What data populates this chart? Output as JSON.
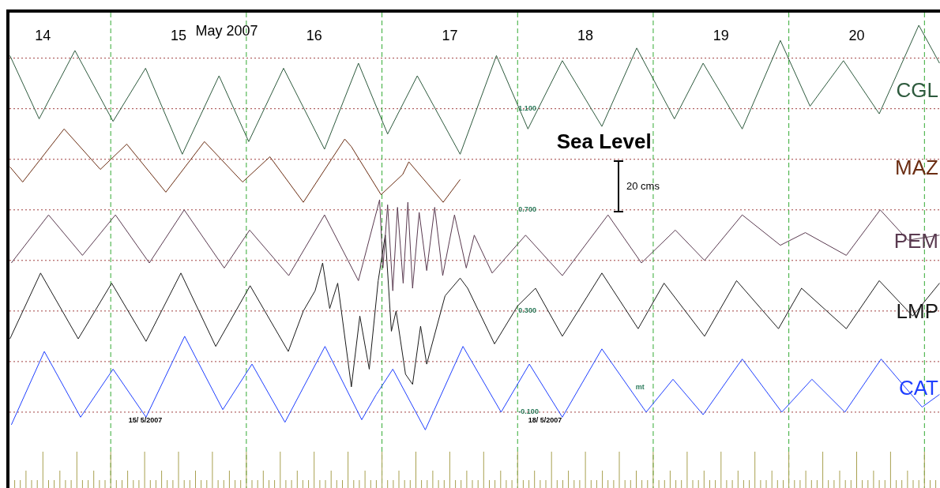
{
  "chart_data": {
    "type": "line",
    "title": "Sea Level",
    "ylabel": "mt",
    "xlim": [
      "2007-05-14T06:05",
      "2007-05-21T02:45"
    ],
    "xticks": [
      {
        "value": "2007-05-14T12:00",
        "label": "14"
      },
      {
        "value": "2007-05-15T12:00",
        "label": "15"
      },
      {
        "value": "2007-05-16T12:00",
        "label": "16"
      },
      {
        "value": "2007-05-17T12:00",
        "label": "17"
      },
      {
        "value": "2007-05-18T12:00",
        "label": "18"
      },
      {
        "value": "2007-05-19T12:00",
        "label": "19"
      },
      {
        "value": "2007-05-20T12:00",
        "label": "20"
      }
    ],
    "ylim": [
      -0.4,
      1.48
    ],
    "yticks": [
      {
        "value": -0.1,
        "label": "-0.100"
      },
      {
        "value": 0.1,
        "label": null
      },
      {
        "value": 0.3,
        "label": "0.300"
      },
      {
        "value": 0.5,
        "label": null
      },
      {
        "value": 0.7,
        "label": "0.700"
      },
      {
        "value": 0.9,
        "label": null
      },
      {
        "value": 1.1,
        "label": "1.100"
      },
      {
        "value": 1.3,
        "label": null
      }
    ],
    "grid": "y",
    "legend": false,
    "marker": "none",
    "line_style": "solid",
    "ref_lines": [
      {
        "axis": "x",
        "value": "2007-05-15T00:00",
        "color": "#33aa33",
        "line_style": "dashed"
      },
      {
        "axis": "x",
        "value": "2007-05-16T00:00",
        "color": "#33aa33",
        "line_style": "dashed"
      },
      {
        "axis": "x",
        "value": "2007-05-17T00:00",
        "color": "#33aa33",
        "line_style": "dashed"
      },
      {
        "axis": "x",
        "value": "2007-05-18T00:00",
        "color": "#33aa33",
        "line_style": "dashed"
      },
      {
        "axis": "x",
        "value": "2007-05-19T00:00",
        "color": "#33aa33",
        "line_style": "dashed"
      },
      {
        "axis": "x",
        "value": "2007-05-20T00:00",
        "color": "#33aa33",
        "line_style": "dashed"
      },
      {
        "axis": "x",
        "value": "2007-05-21T00:00",
        "color": "#33aa33",
        "line_style": "dashed"
      }
    ],
    "annotations": [
      "May 2007",
      "15/ 5/2007",
      "18/ 5/2007",
      "20 cms"
    ],
    "series": [
      {
        "name": "CGL",
        "color": "#2d5a3d",
        "x": [
          "2007-05-14T06:10",
          "2007-05-14T11:20",
          "2007-05-14T17:40",
          "2007-05-15T00:25",
          "2007-05-15T06:10",
          "2007-05-15T12:40",
          "2007-05-15T19:10",
          "2007-05-16T00:25",
          "2007-05-16T06:35",
          "2007-05-16T13:50",
          "2007-05-16T19:50",
          "2007-05-17T01:00",
          "2007-05-17T06:15",
          "2007-05-17T13:50",
          "2007-05-17T20:15",
          "2007-05-18T01:50",
          "2007-05-18T07:55",
          "2007-05-18T14:55",
          "2007-05-18T21:05",
          "2007-05-19T03:45",
          "2007-05-19T08:50",
          "2007-05-19T15:45",
          "2007-05-19T22:30",
          "2007-05-20T03:45",
          "2007-05-20T09:40",
          "2007-05-20T16:00",
          "2007-05-20T23:00",
          "2007-05-21T02:40"
        ],
        "values": [
          1.31,
          1.06,
          1.33,
          1.05,
          1.26,
          0.92,
          1.23,
          0.97,
          1.26,
          0.94,
          1.28,
          1.0,
          1.23,
          0.92,
          1.31,
          1.02,
          1.29,
          1.03,
          1.34,
          1.06,
          1.28,
          1.02,
          1.37,
          1.11,
          1.29,
          1.08,
          1.43,
          1.28
        ]
      },
      {
        "name": "MAZ",
        "color": "#6b2d12",
        "x": [
          "2007-05-14T06:10",
          "2007-05-14T08:25",
          "2007-05-14T15:45",
          "2007-05-14T22:10",
          "2007-05-15T02:50",
          "2007-05-15T09:45",
          "2007-05-15T16:35",
          "2007-05-15T23:20",
          "2007-05-16T04:10",
          "2007-05-16T10:05",
          "2007-05-16T17:25",
          "2007-05-16T18:35",
          "2007-05-16T23:50",
          "2007-05-17T03:40",
          "2007-05-17T04:45",
          "2007-05-17T10:50",
          "2007-05-17T13:50"
        ],
        "values": [
          0.87,
          0.81,
          1.02,
          0.86,
          0.96,
          0.77,
          0.97,
          0.81,
          0.91,
          0.73,
          0.98,
          0.95,
          0.76,
          0.84,
          0.89,
          0.73,
          0.82
        ]
      },
      {
        "name": "PEM",
        "color": "#5a3a50",
        "x": [
          "2007-05-14T06:25",
          "2007-05-14T13:00",
          "2007-05-14T19:00",
          "2007-05-15T00:50",
          "2007-05-15T06:50",
          "2007-05-15T13:00",
          "2007-05-15T20:05",
          "2007-05-16T00:35",
          "2007-05-16T07:30",
          "2007-05-16T13:50",
          "2007-05-16T19:50",
          "2007-05-16T23:35",
          "2007-05-17T00:10",
          "2007-05-17T01:00",
          "2007-05-17T01:55",
          "2007-05-17T02:45",
          "2007-05-17T03:45",
          "2007-05-17T04:35",
          "2007-05-17T05:25",
          "2007-05-17T06:35",
          "2007-05-17T07:55",
          "2007-05-17T09:20",
          "2007-05-17T10:45",
          "2007-05-17T12:50",
          "2007-05-17T14:55",
          "2007-05-17T16:20",
          "2007-05-17T19:30",
          "2007-05-18T01:25",
          "2007-05-18T07:55",
          "2007-05-18T16:00",
          "2007-05-18T21:55",
          "2007-05-19T03:55",
          "2007-05-19T09:05",
          "2007-05-19T15:45",
          "2007-05-19T22:30",
          "2007-05-20T02:55",
          "2007-05-20T10:10",
          "2007-05-20T16:10",
          "2007-05-20T21:05",
          "2007-05-21T02:40"
        ],
        "values": [
          0.49,
          0.68,
          0.52,
          0.68,
          0.49,
          0.7,
          0.47,
          0.62,
          0.44,
          0.68,
          0.42,
          0.74,
          0.47,
          0.72,
          0.38,
          0.71,
          0.41,
          0.73,
          0.39,
          0.69,
          0.46,
          0.71,
          0.44,
          0.68,
          0.47,
          0.6,
          0.45,
          0.6,
          0.44,
          0.68,
          0.49,
          0.62,
          0.5,
          0.68,
          0.56,
          0.61,
          0.52,
          0.7,
          0.58,
          0.6
        ]
      },
      {
        "name": "LMP",
        "color": "#1a1a1a",
        "x": [
          "2007-05-14T06:10",
          "2007-05-14T11:35",
          "2007-05-14T18:15",
          "2007-05-15T00:10",
          "2007-05-15T06:15",
          "2007-05-15T12:25",
          "2007-05-15T18:35",
          "2007-05-16T00:40",
          "2007-05-16T07:25",
          "2007-05-16T10:05",
          "2007-05-16T12:10",
          "2007-05-16T13:30",
          "2007-05-16T14:45",
          "2007-05-16T16:10",
          "2007-05-16T18:35",
          "2007-05-16T20:05",
          "2007-05-16T21:45",
          "2007-05-16T23:20",
          "2007-05-17T00:35",
          "2007-05-17T01:40",
          "2007-05-17T02:30",
          "2007-05-17T04:10",
          "2007-05-17T05:25",
          "2007-05-17T06:50",
          "2007-05-17T07:55",
          "2007-05-17T11:10",
          "2007-05-17T13:50",
          "2007-05-17T15:10",
          "2007-05-17T19:55",
          "2007-05-18T00:00",
          "2007-05-18T03:10",
          "2007-05-18T07:55",
          "2007-05-18T14:55",
          "2007-05-18T21:20",
          "2007-05-19T01:55",
          "2007-05-19T09:05",
          "2007-05-19T14:45",
          "2007-05-19T22:10",
          "2007-05-20T02:15",
          "2007-05-20T10:10",
          "2007-05-20T16:00",
          "2007-05-20T21:55",
          "2007-05-21T02:40"
        ],
        "values": [
          0.19,
          0.45,
          0.19,
          0.41,
          0.18,
          0.45,
          0.16,
          0.4,
          0.14,
          0.3,
          0.38,
          0.49,
          0.31,
          0.41,
          0.0,
          0.28,
          0.07,
          0.42,
          0.6,
          0.22,
          0.3,
          0.05,
          0.01,
          0.24,
          0.09,
          0.36,
          0.43,
          0.39,
          0.17,
          0.32,
          0.39,
          0.2,
          0.45,
          0.23,
          0.41,
          0.2,
          0.42,
          0.23,
          0.39,
          0.23,
          0.42,
          0.28,
          0.41
        ]
      },
      {
        "name": "CAT",
        "color": "#1f3fff",
        "x": [
          "2007-05-14T06:25",
          "2007-05-14T12:15",
          "2007-05-14T18:40",
          "2007-05-15T00:25",
          "2007-05-15T06:15",
          "2007-05-15T13:05",
          "2007-05-15T19:50",
          "2007-05-16T01:00",
          "2007-05-16T06:50",
          "2007-05-16T13:55",
          "2007-05-16T20:25",
          "2007-05-16T23:00",
          "2007-05-17T01:55",
          "2007-05-17T07:40",
          "2007-05-17T14:20",
          "2007-05-17T21:05",
          "2007-05-18T02:05",
          "2007-05-18T07:55",
          "2007-05-18T14:55",
          "2007-05-18T22:45",
          "2007-05-19T03:30",
          "2007-05-19T08:50",
          "2007-05-19T15:45",
          "2007-05-19T22:45",
          "2007-05-20T04:05",
          "2007-05-20T09:55",
          "2007-05-20T16:20",
          "2007-05-20T23:35",
          "2007-05-21T02:40"
        ],
        "values": [
          -0.15,
          0.14,
          -0.12,
          0.07,
          -0.12,
          0.2,
          -0.09,
          0.09,
          -0.14,
          0.16,
          -0.13,
          -0.03,
          0.07,
          -0.17,
          0.16,
          -0.1,
          0.09,
          -0.12,
          0.15,
          -0.1,
          0.03,
          -0.11,
          0.11,
          -0.1,
          0.03,
          -0.1,
          0.11,
          -0.08,
          -0.03
        ]
      }
    ]
  }
}
